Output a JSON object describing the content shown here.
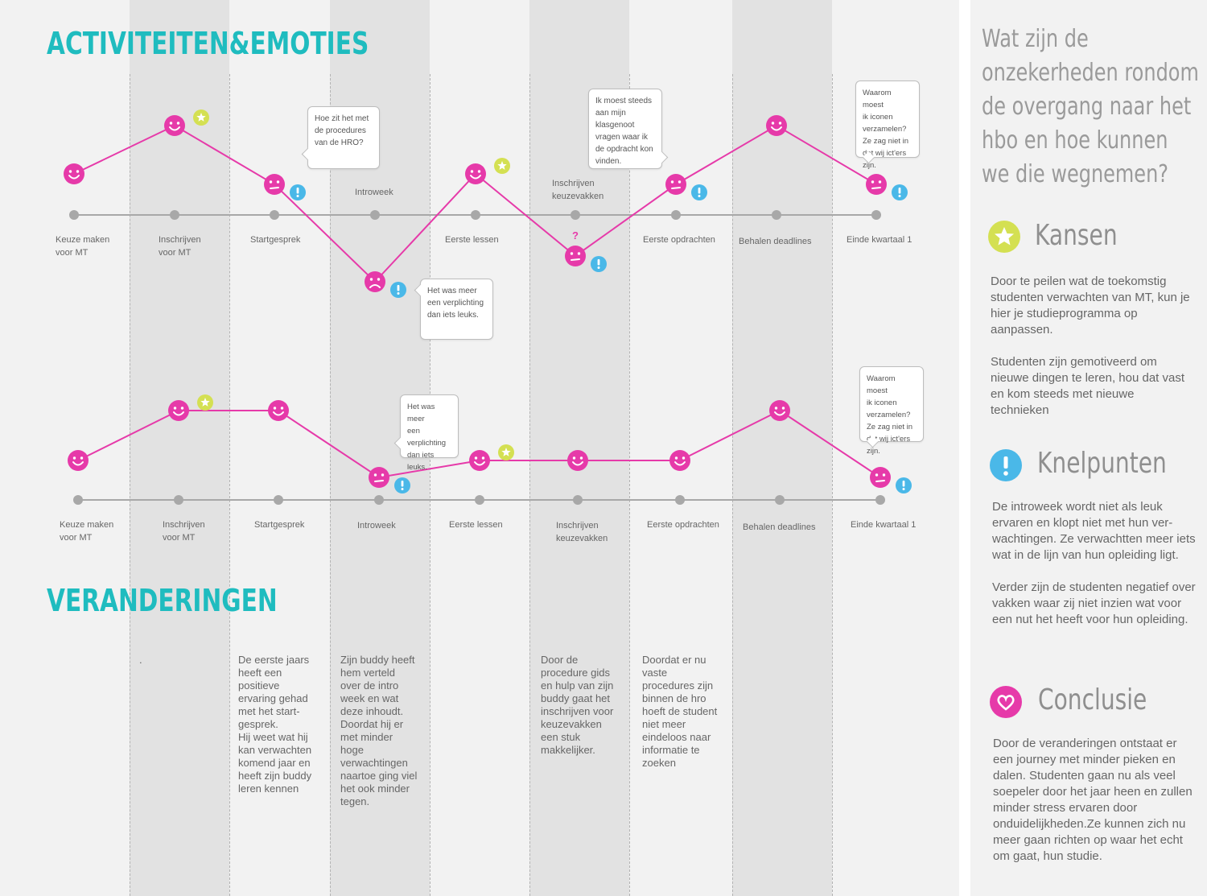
{
  "colors": {
    "teal": "#1fbcbf",
    "pink": "#e63aa9",
    "yellow": "#d4e052",
    "blue": "#4ab8e8",
    "grey": "#a8a8a8"
  },
  "titles": {
    "activities": "ACTIVITEITEN&EMOTIES",
    "changes": "VERANDERINGEN"
  },
  "journey1": {
    "stages": [
      "Keuze maken\nvoor MT",
      "Inschrijven\nvoor MT",
      "Startgesprek",
      "Introweek",
      "Eerste lessen",
      "Inschrijven\nkeuzevakken",
      "Eerste opdrachten",
      "Behalen deadlines",
      "Einde kwartaal 1"
    ],
    "emotions": [
      {
        "face": "happy",
        "level": 2,
        "badge": ""
      },
      {
        "face": "happy",
        "level": 3,
        "badge": "star"
      },
      {
        "face": "neutral",
        "level": 1,
        "badge": "alert"
      },
      {
        "face": "sad",
        "level": -2,
        "badge": "alert"
      },
      {
        "face": "happy",
        "level": 2,
        "badge": "star"
      },
      {
        "face": "neutral",
        "level": -1,
        "badge": "alert"
      },
      {
        "face": "neutral",
        "level": 1,
        "badge": "alert"
      },
      {
        "face": "happy",
        "level": 3,
        "badge": ""
      },
      {
        "face": "neutral",
        "level": 1,
        "badge": "alert"
      }
    ],
    "question_mark": "?",
    "bubbles": {
      "b1": "Hoe zit het met\nde procedures\nvan de HRO?",
      "b2": "Het was meer\neen verplichting\ndan iets leuks.",
      "b3": "Ik moest steeds\naan mijn\nklasgenoot\nvragen waar ik\nde opdracht kon\nvinden.",
      "b4": "Waarom moest\nik iconen\nverzamelen?\nZe zag niet in\ndat wij ict'ers\nzijn."
    }
  },
  "journey2": {
    "stages": [
      "Keuze maken\nvoor MT",
      "Inschrijven\nvoor MT",
      "Startgesprek",
      "Introweek",
      "Eerste lessen",
      "Inschrijven\nkeuzevakken",
      "Eerste opdrachten",
      "Behalen deadlines",
      "Einde kwartaal 1"
    ],
    "emotions": [
      {
        "face": "happy",
        "level": 0,
        "badge": ""
      },
      {
        "face": "happy",
        "level": 2,
        "badge": "star"
      },
      {
        "face": "happy",
        "level": 2,
        "badge": ""
      },
      {
        "face": "neutral",
        "level": -1,
        "badge": "alert"
      },
      {
        "face": "happy",
        "level": 0,
        "badge": "star"
      },
      {
        "face": "happy",
        "level": 0,
        "badge": ""
      },
      {
        "face": "happy",
        "level": 0,
        "badge": ""
      },
      {
        "face": "happy",
        "level": 2,
        "badge": ""
      },
      {
        "face": "neutral",
        "level": -1,
        "badge": "alert"
      }
    ],
    "bubbles": {
      "b1": "Het was meer\neen\nverplichting\ndan iets leuks.",
      "b2": "Waarom moest\nik iconen\nverzamelen?\nZe zag niet in\ndat wij ict'ers\nzijn."
    }
  },
  "changes": {
    "c1": ".",
    "c2": "De eerste jaars\nheeft een\npositieve\nervaring gehad\nmet het start-\ngesprek.\nHij weet wat hij\nkan verwachten\nkomend jaar en\nheeft zijn buddy\nleren kennen",
    "c3": "Zijn buddy heeft\nhem verteld\nover de intro\nweek en wat\ndeze inhoudt.\nDoordat hij er\nmet minder\nhoge\nverwachtingen\nnaartoe ging viel\nhet ook minder\ntegen.",
    "c4": "Door de\nprocedure gids\nen hulp van zijn\nbuddy gaat het\ninschrijven voor\nkeuzevakken\neen stuk\nmakkelijker.",
    "c5": "Doordat er nu\nvaste\nprocedures zijn\nbinnen de hro\nhoeft de student\nniet meer\neindeloos naar\ninformatie te\nzoeken"
  },
  "panel": {
    "question": "Wat zijn de onzekerheden rondom de overgang naar het hbo en hoe kunnen we die wegnemen?",
    "kansen": {
      "icon": "star-icon",
      "title": "Kansen",
      "p1": "Door te peilen wat de toekomstig studenten verwachten van MT, kun je hier je studieprogramma op aanpassen.",
      "p2": "Studenten zijn gemotiveerd om nieuwe dingen te leren, hou dat vast en kom steeds met nieuwe technieken"
    },
    "knelpunten": {
      "icon": "exclamation-icon",
      "title": "Knelpunten",
      "p1": "De introweek wordt niet als leuk ervaren en klopt niet met hun ver-wachtingen. Ze verwachtten meer iets wat in de lijn van hun opleiding ligt.",
      "p2": "Verder zijn de studenten negatief over vakken waar zij niet inzien wat voor een nut het heeft voor hun opleiding."
    },
    "conclusie": {
      "icon": "heart-icon",
      "title": "Conclusie",
      "p1": "Door de veranderingen ontstaat er een journey met minder pieken en dalen. Studenten gaan nu als veel soepeler door het jaar heen en zullen minder stress ervaren door onduidelijkheden.Ze kunnen zich nu meer gaan richten op waar het echt om gaat, hun studie."
    }
  }
}
